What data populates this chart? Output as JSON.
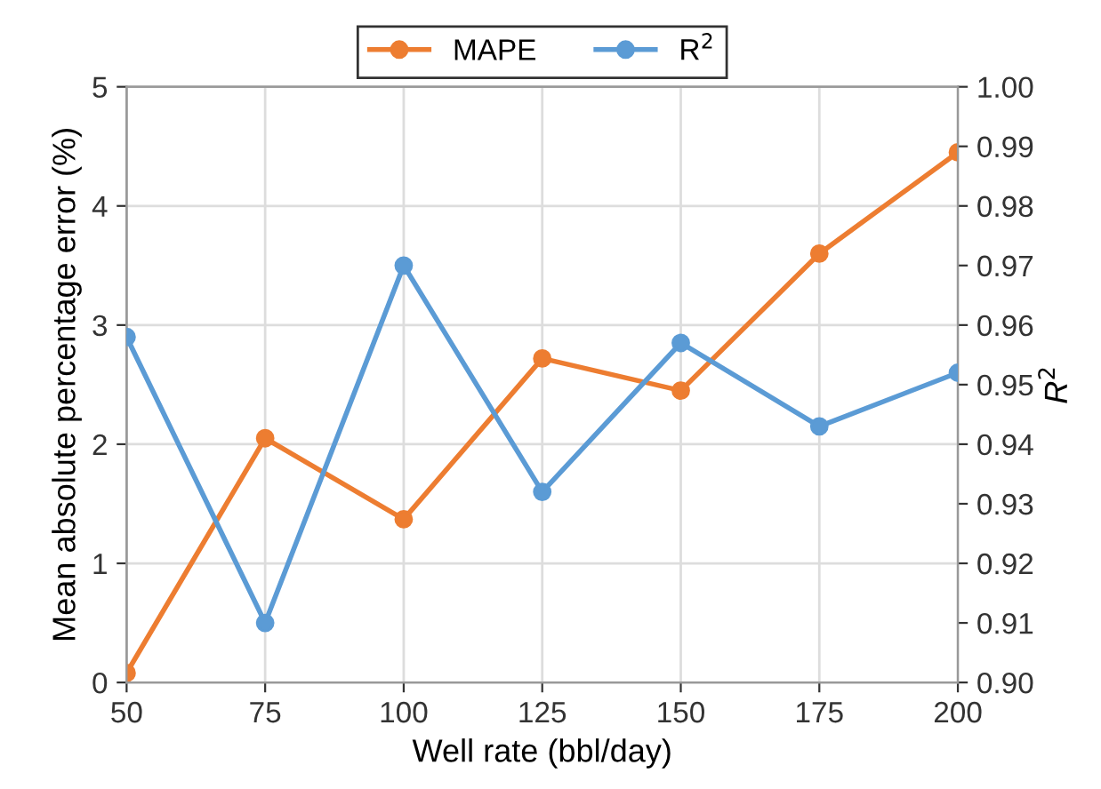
{
  "chart_data": {
    "type": "line",
    "xlabel": "Well rate (bbl/day)",
    "ylabel": "Mean absolute percentage error (%)",
    "y2label": "R$^{2}$",
    "x": [
      50,
      75,
      100,
      125,
      150,
      175,
      200
    ],
    "series": [
      {
        "name": "MAPE",
        "color": "#ed7d31",
        "values": [
          0.08,
          2.05,
          1.37,
          2.72,
          2.45,
          3.6,
          4.45
        ]
      },
      {
        "name": "R$^{2}$",
        "color": "#5b9bd5",
        "axis": "y2",
        "values": [
          0.958,
          0.91,
          0.97,
          0.932,
          0.957,
          0.943,
          0.952
        ]
      }
    ],
    "xlim": [
      50,
      200
    ],
    "xticks": [
      50,
      75,
      100,
      125,
      150,
      175,
      200
    ],
    "ylim": [
      0,
      5
    ],
    "yticks": [
      0,
      1,
      2,
      3,
      4,
      5
    ],
    "y2lim": [
      0.9,
      1.0
    ],
    "y2ticks": [
      {
        "value": 0.9,
        "label": "0.90"
      },
      {
        "value": 0.91,
        "label": "0.91"
      },
      {
        "value": 0.92,
        "label": "0.92"
      },
      {
        "value": 0.93,
        "label": "0.93"
      },
      {
        "value": 0.94,
        "label": "0.94"
      },
      {
        "value": 0.95,
        "label": "0.95"
      },
      {
        "value": 0.96,
        "label": "0.96"
      },
      {
        "value": 0.97,
        "label": "0.97"
      },
      {
        "value": 0.98,
        "label": "0.98"
      },
      {
        "value": 0.99,
        "label": "0.99"
      },
      {
        "value": 1.0,
        "label": "1.00"
      }
    ],
    "grid": true,
    "legend": "top",
    "marker": "circle",
    "line_style": "solid"
  }
}
